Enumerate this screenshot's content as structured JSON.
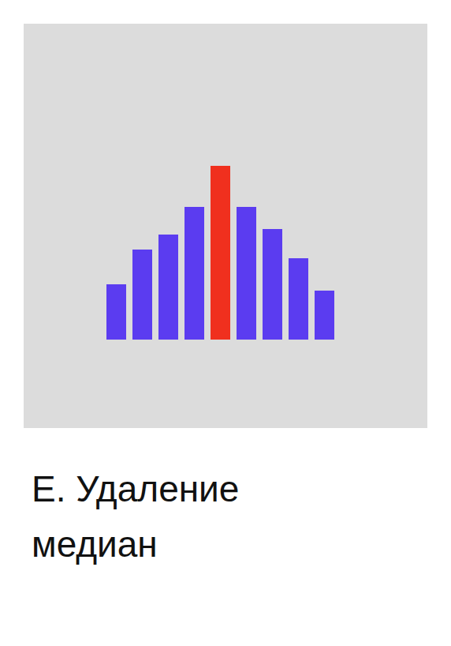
{
  "chart_data": {
    "type": "bar",
    "title": "Е. Удаление медиан",
    "categories": [
      null,
      null,
      null,
      null,
      null,
      null,
      null,
      null,
      null
    ],
    "values": [
      70,
      114,
      133,
      168,
      220,
      168,
      140,
      103,
      62
    ],
    "colors": [
      "#5b3cf0",
      "#5b3cf0",
      "#5b3cf0",
      "#5b3cf0",
      "#f0301e",
      "#5b3cf0",
      "#5b3cf0",
      "#5b3cf0",
      "#5b3cf0"
    ],
    "ylim": [
      0,
      220
    ],
    "tick_labels": false,
    "grid": false
  }
}
